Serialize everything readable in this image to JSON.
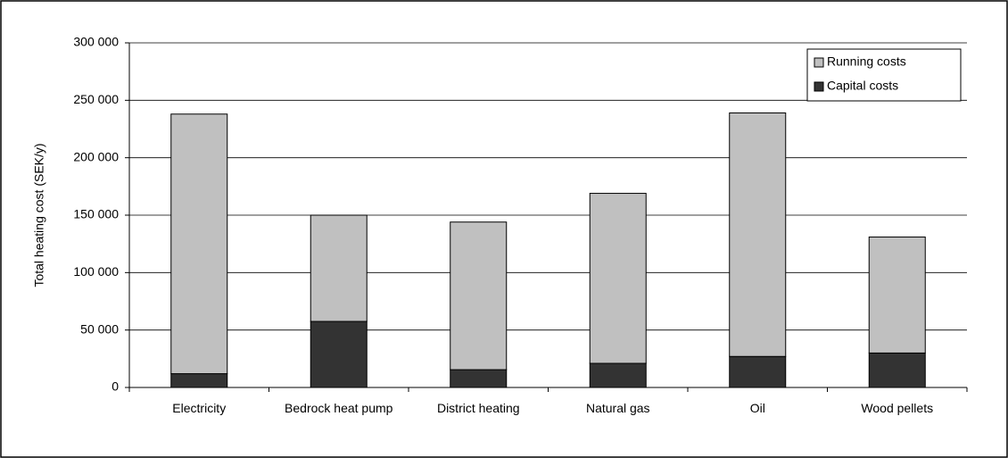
{
  "chart_data": {
    "type": "stacked-bar",
    "y_label": "Total heating cost (SEK/y)",
    "categories": [
      "Electricity",
      "Bedrock heat pump",
      "District heating",
      "Natural gas",
      "Oil",
      "Wood pellets"
    ],
    "series": [
      {
        "name": "Capital costs",
        "color": "#333333",
        "values": [
          12000,
          57500,
          15500,
          21000,
          27000,
          30000
        ]
      },
      {
        "name": "Running costs",
        "color": "#c0c0c0",
        "values": [
          226000,
          92500,
          128500,
          148000,
          212000,
          101000
        ]
      }
    ],
    "ylim": [
      0,
      300000
    ],
    "yticks": [
      0,
      {
        "value": 50000,
        "label": "50 000"
      },
      {
        "value": 100000,
        "label": "100 000"
      },
      {
        "value": 150000,
        "label": "150 000"
      },
      {
        "value": 200000,
        "label": "200 000"
      },
      {
        "value": 250000,
        "label": "250 000"
      },
      {
        "value": 300000,
        "label": "300 000"
      }
    ],
    "grid": true,
    "legend": "top-right"
  }
}
